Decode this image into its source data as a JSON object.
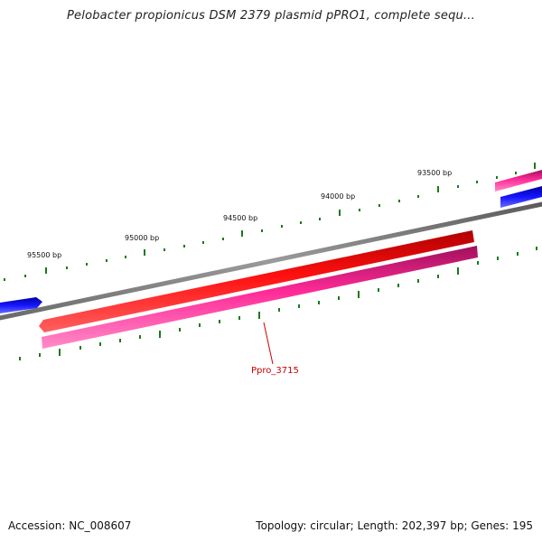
{
  "header": {
    "title": "Pelobacter propionicus DSM 2379 plasmid pPRO1, complete sequ..."
  },
  "footer": {
    "accession": "Accession: NC_008607",
    "summary": "Topology: circular; Length: 202,397 bp; Genes: 195"
  },
  "ruler": {
    "tick_labels": [
      "93500 bp",
      "94000 bp",
      "94500 bp",
      "95000 bp",
      "95500 bp"
    ]
  },
  "genes": {
    "highlight_label": "Ppro_3715"
  },
  "colors": {
    "backbone": "#808080",
    "gene_forward": "#0000ee",
    "gene_reverse": "#ee0000",
    "gene_feature": "#ee1b8a",
    "tick": "#1a7a1a",
    "label": "#cc0000"
  }
}
